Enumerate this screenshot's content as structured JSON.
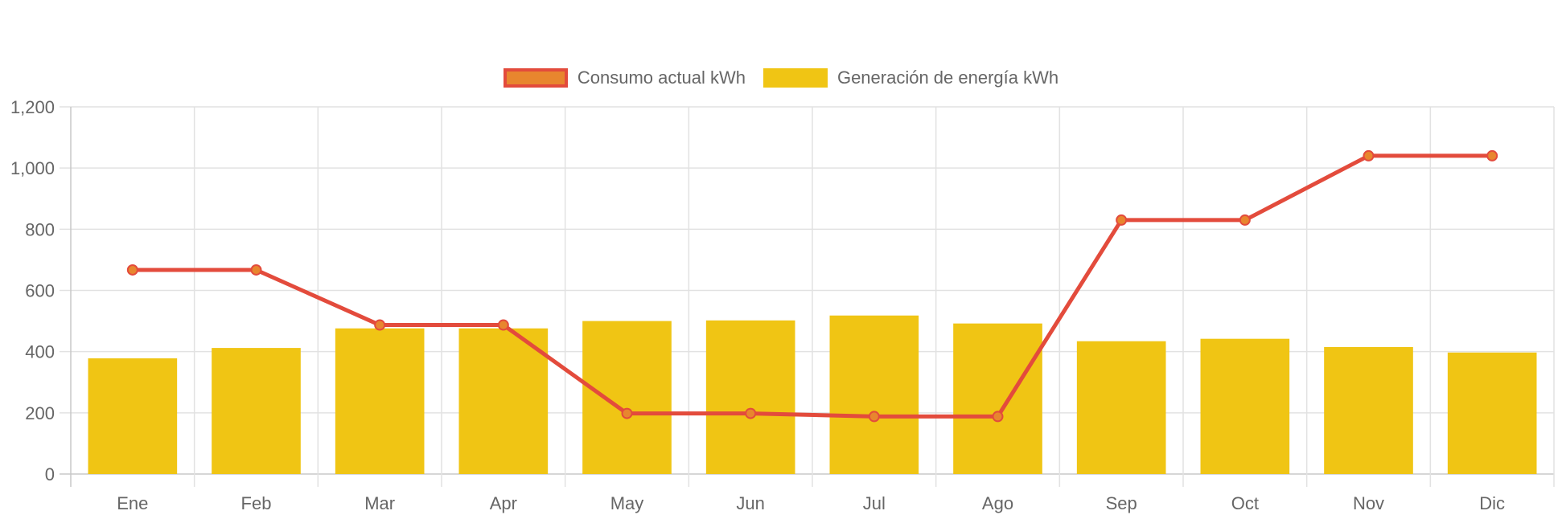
{
  "chart_data": {
    "type": "bar+line",
    "categories": [
      "Ene",
      "Feb",
      "Mar",
      "Apr",
      "May",
      "Jun",
      "Jul",
      "Ago",
      "Sep",
      "Oct",
      "Nov",
      "Dic"
    ],
    "series": [
      {
        "name": "Consumo actual kWh",
        "type": "line",
        "color": "#e34b3c",
        "fill": "#e8862e",
        "values": [
          667,
          667,
          487,
          487,
          198,
          198,
          188,
          188,
          830,
          830,
          1040,
          1040
        ]
      },
      {
        "name": "Generación de energía kWh",
        "type": "bar",
        "color": "#f0c514",
        "values": [
          378,
          412,
          476,
          476,
          500,
          502,
          518,
          492,
          434,
          442,
          415,
          397
        ]
      }
    ],
    "y_ticks": [
      "0",
      "200",
      "400",
      "600",
      "800",
      "1,000",
      "1,200"
    ],
    "ylim": [
      0,
      1200
    ],
    "grid": true,
    "legend_position": "top-center"
  }
}
